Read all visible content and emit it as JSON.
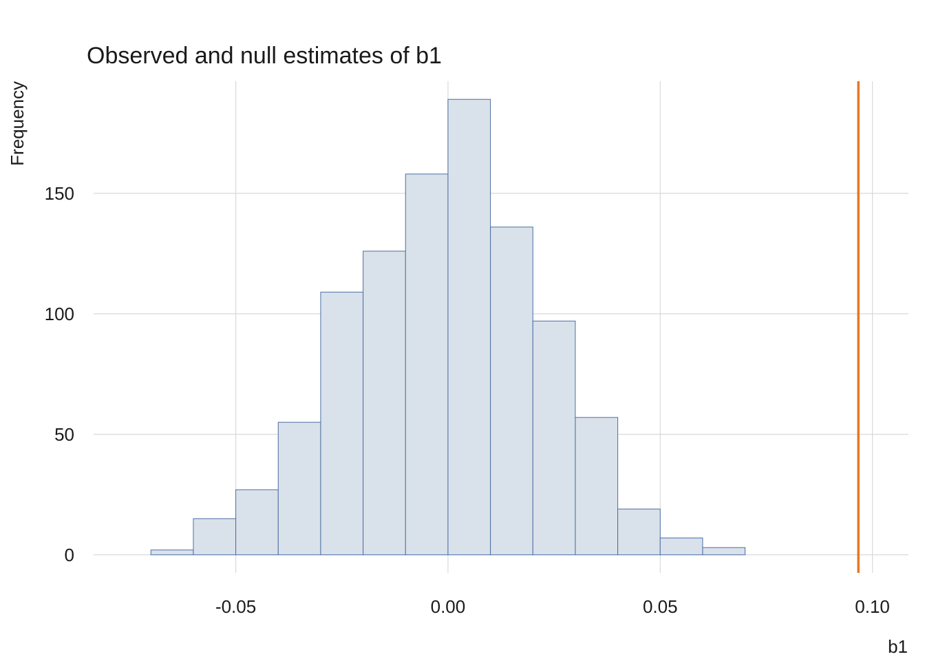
{
  "chart_data": {
    "type": "bar",
    "title": "Observed and null estimates of b1",
    "xlabel": "b1",
    "ylabel": "Frequency",
    "bin_width": 0.01,
    "bins": [
      {
        "start": -0.07,
        "end": -0.06,
        "count": 2
      },
      {
        "start": -0.06,
        "end": -0.05,
        "count": 15
      },
      {
        "start": -0.05,
        "end": -0.04,
        "count": 27
      },
      {
        "start": -0.04,
        "end": -0.03,
        "count": 55
      },
      {
        "start": -0.03,
        "end": -0.02,
        "count": 109
      },
      {
        "start": -0.02,
        "end": -0.01,
        "count": 126
      },
      {
        "start": -0.01,
        "end": 0.0,
        "count": 158
      },
      {
        "start": 0.0,
        "end": 0.01,
        "count": 189
      },
      {
        "start": 0.01,
        "end": 0.02,
        "count": 136
      },
      {
        "start": 0.02,
        "end": 0.03,
        "count": 97
      },
      {
        "start": 0.03,
        "end": 0.04,
        "count": 57
      },
      {
        "start": 0.04,
        "end": 0.05,
        "count": 19
      },
      {
        "start": 0.05,
        "end": 0.06,
        "count": 7
      },
      {
        "start": 0.06,
        "end": 0.07,
        "count": 3
      }
    ],
    "observed_value": 0.0967,
    "xlim": [
      -0.0835,
      0.1085
    ],
    "ylim": [
      -7.5,
      196.5
    ],
    "x_ticks": [
      {
        "value": -0.05,
        "label": "-0.05"
      },
      {
        "value": 0.0,
        "label": "0.00"
      },
      {
        "value": 0.05,
        "label": "0.05"
      },
      {
        "value": 0.1,
        "label": "0.10"
      }
    ],
    "y_ticks": [
      {
        "value": 0,
        "label": "0"
      },
      {
        "value": 50,
        "label": "50"
      },
      {
        "value": 100,
        "label": "100"
      },
      {
        "value": 150,
        "label": "150"
      }
    ],
    "grid": true,
    "colors": {
      "bar_fill": "#d9e1ea",
      "bar_stroke": "#4a6fa5",
      "observed_line": "#e87722",
      "grid": "#d9d9d9"
    }
  }
}
